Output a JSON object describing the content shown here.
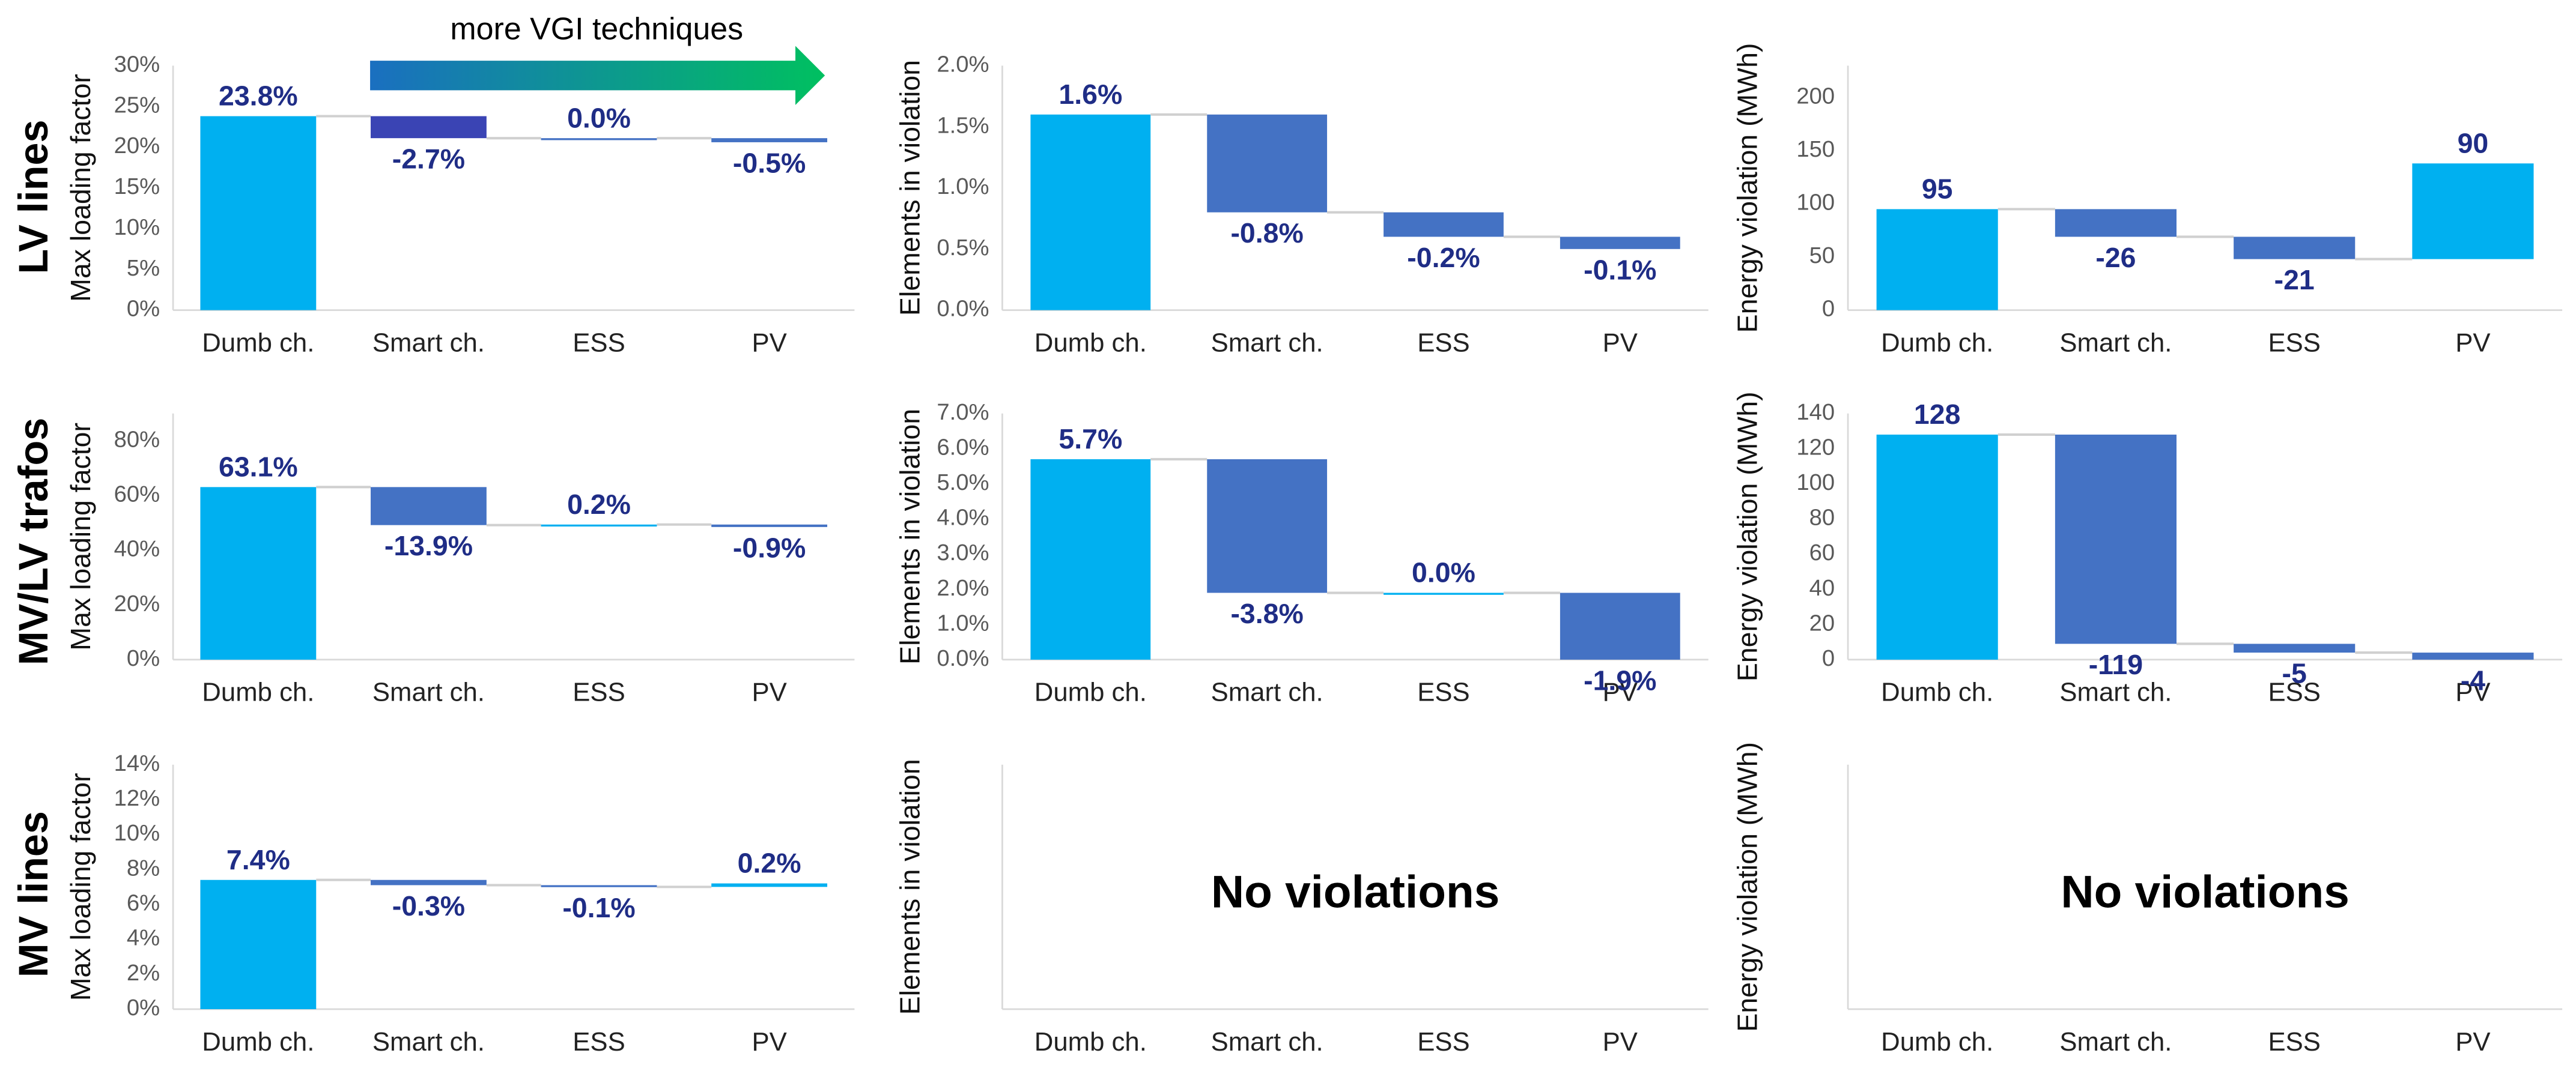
{
  "row_labels": [
    "LV lines",
    "MV/LV trafos",
    "MV lines"
  ],
  "arrow_label": "more VGI techniques",
  "chart_data": [
    {
      "type": "waterfall",
      "ylabel": "Max loading factor",
      "categories": [
        "Dumb ch.",
        "Smart ch.",
        "ESS",
        "PV"
      ],
      "values": [
        23.8,
        -2.7,
        0.0,
        -0.5
      ],
      "value_labels": [
        "23.8%",
        "-2.7%",
        "0.0%",
        "-0.5%"
      ],
      "colors": [
        "#00b0f0",
        "#3a44b4",
        "#4472c4",
        "#4472c4"
      ],
      "ylim": [
        0,
        30
      ],
      "yticks": [
        {
          "value": 0,
          "label": "0%"
        },
        {
          "value": 5,
          "label": "5%"
        },
        {
          "value": 10,
          "label": "10%"
        },
        {
          "value": 15,
          "label": "15%"
        },
        {
          "value": 20,
          "label": "20%"
        },
        {
          "value": 25,
          "label": "25%"
        },
        {
          "value": 30,
          "label": "30%"
        }
      ]
    },
    {
      "type": "waterfall",
      "ylabel": "Elements in violation",
      "categories": [
        "Dumb ch.",
        "Smart ch.",
        "ESS",
        "PV"
      ],
      "values": [
        1.6,
        -0.8,
        -0.2,
        -0.1
      ],
      "value_labels": [
        "1.6%",
        "-0.8%",
        "-0.2%",
        "-0.1%"
      ],
      "colors": [
        "#00b0f0",
        "#4472c4",
        "#4472c4",
        "#4472c4"
      ],
      "ylim": [
        0,
        2
      ],
      "yticks": [
        {
          "value": 0,
          "label": "0.0%"
        },
        {
          "value": 0.5,
          "label": "0.5%"
        },
        {
          "value": 1,
          "label": "1.0%"
        },
        {
          "value": 1.5,
          "label": "1.5%"
        },
        {
          "value": 2,
          "label": "2.0%"
        }
      ]
    },
    {
      "type": "waterfall",
      "ylabel": "Energy violation (MWh)",
      "categories": [
        "Dumb ch.",
        "Smart ch.",
        "ESS",
        "PV"
      ],
      "values": [
        95,
        -26,
        -21,
        90
      ],
      "colors": [
        "#00b0f0",
        "#4472c4",
        "#4472c4",
        "#00b0f0"
      ],
      "ylim": [
        0,
        230
      ],
      "yticks": [
        0,
        50,
        100,
        150,
        200
      ]
    },
    {
      "type": "waterfall",
      "ylabel": "Max loading factor",
      "categories": [
        "Dumb ch.",
        "Smart ch.",
        "ESS",
        "PV"
      ],
      "values": [
        63.1,
        -13.9,
        0.2,
        -0.9
      ],
      "value_labels": [
        "63.1%",
        "-13.9%",
        "0.2%",
        "-0.9%"
      ],
      "colors": [
        "#00b0f0",
        "#4472c4",
        "#00b0f0",
        "#4472c4"
      ],
      "ylim": [
        0,
        90
      ],
      "yticks": [
        {
          "value": 0,
          "label": "0%"
        },
        {
          "value": 20,
          "label": "20%"
        },
        {
          "value": 40,
          "label": "40%"
        },
        {
          "value": 60,
          "label": "60%"
        },
        {
          "value": 80,
          "label": "80%"
        }
      ]
    },
    {
      "type": "waterfall",
      "ylabel": "Elements in violation",
      "categories": [
        "Dumb ch.",
        "Smart ch.",
        "ESS",
        "PV"
      ],
      "values": [
        5.7,
        -3.8,
        0.0,
        -1.9
      ],
      "value_labels": [
        "5.7%",
        "-3.8%",
        "0.0%",
        "-1.9%"
      ],
      "colors": [
        "#00b0f0",
        "#4472c4",
        "#00b0f0",
        "#4472c4"
      ],
      "ylim": [
        0,
        7
      ],
      "yticks": [
        {
          "value": 0,
          "label": "0.0%"
        },
        {
          "value": 1,
          "label": "1.0%"
        },
        {
          "value": 2,
          "label": "2.0%"
        },
        {
          "value": 3,
          "label": "3.0%"
        },
        {
          "value": 4,
          "label": "4.0%"
        },
        {
          "value": 5,
          "label": "5.0%"
        },
        {
          "value": 6,
          "label": "6.0%"
        },
        {
          "value": 7,
          "label": "7.0%"
        }
      ]
    },
    {
      "type": "waterfall",
      "ylabel": "Energy violation (MWh)",
      "categories": [
        "Dumb ch.",
        "Smart ch.",
        "ESS",
        "PV"
      ],
      "values": [
        128,
        -119,
        -5,
        -4
      ],
      "colors": [
        "#00b0f0",
        "#4472c4",
        "#4472c4",
        "#4472c4"
      ],
      "ylim": [
        0,
        140
      ],
      "yticks": [
        0,
        20,
        40,
        60,
        80,
        100,
        120,
        140
      ]
    },
    {
      "type": "waterfall",
      "ylabel": "Max loading factor",
      "categories": [
        "Dumb ch.",
        "Smart ch.",
        "ESS",
        "PV"
      ],
      "values": [
        7.4,
        -0.3,
        -0.1,
        0.2
      ],
      "value_labels": [
        "7.4%",
        "-0.3%",
        "-0.1%",
        "0.2%"
      ],
      "colors": [
        "#00b0f0",
        "#4472c4",
        "#4472c4",
        "#00b0f0"
      ],
      "ylim": [
        0,
        14
      ],
      "yticks": [
        {
          "value": 0,
          "label": "0%"
        },
        {
          "value": 2,
          "label": "2%"
        },
        {
          "value": 4,
          "label": "4%"
        },
        {
          "value": 6,
          "label": "6%"
        },
        {
          "value": 8,
          "label": "8%"
        },
        {
          "value": 10,
          "label": "10%"
        },
        {
          "value": 12,
          "label": "12%"
        },
        {
          "value": 14,
          "label": "14%"
        }
      ]
    },
    {
      "type": "empty",
      "ylabel": "Elements in violation",
      "categories": [
        "Dumb ch.",
        "Smart ch.",
        "ESS",
        "PV"
      ],
      "annotation": "No violations"
    },
    {
      "type": "empty",
      "ylabel": "Energy violation (MWh)",
      "categories": [
        "Dumb ch.",
        "Smart ch.",
        "ESS",
        "PV"
      ],
      "annotation": "No violations"
    }
  ]
}
